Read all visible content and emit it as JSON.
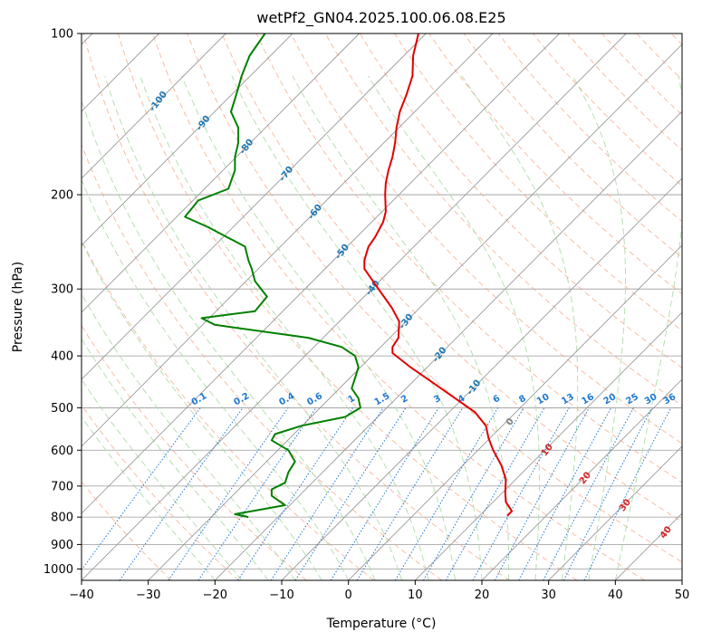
{
  "chart_data": {
    "type": "line",
    "title": "wetPf2_GN04.2025.100.06.08.E25",
    "xlabel": "Temperature (°C)",
    "ylabel": "Pressure (hPa)",
    "xlim": [
      -40,
      50
    ],
    "ylim": [
      1050,
      100
    ],
    "y_scale": "log",
    "x_ticks": [
      -40,
      -30,
      -20,
      -10,
      0,
      10,
      20,
      30,
      40,
      50
    ],
    "y_ticks": [
      1000,
      900,
      800,
      700,
      600,
      500,
      400,
      300,
      200,
      100
    ],
    "grid": true,
    "colors": {
      "temperature": "#e00000",
      "dewpoint": "#008000",
      "isotherm": "#9a9a9a",
      "dry_adiabat": "#f4a582",
      "moist_adiabat": "#a6d8a0",
      "mixing_ratio": "#1f78d1",
      "isotherm_label": "#1f77b4",
      "dry_adiabat_label": "#d62728",
      "zero_label": "#7f7f7f"
    },
    "isotherm_labels": [
      {
        "value": -100,
        "text": "-100"
      },
      {
        "value": -90,
        "text": "-90"
      },
      {
        "value": -80,
        "text": "-80"
      },
      {
        "value": -70,
        "text": "-70"
      },
      {
        "value": -60,
        "text": "-60"
      },
      {
        "value": -50,
        "text": "-50"
      },
      {
        "value": -40,
        "text": "-40"
      },
      {
        "value": -30,
        "text": "-30"
      },
      {
        "value": -20,
        "text": "-20"
      },
      {
        "value": -10,
        "text": "-10"
      },
      {
        "value": 0,
        "text": "0"
      },
      {
        "value": 10,
        "text": "10"
      },
      {
        "value": 20,
        "text": "20"
      },
      {
        "value": 30,
        "text": "30"
      },
      {
        "value": 40,
        "text": "40"
      }
    ],
    "mixing_ratio_labels": [
      "0.1",
      "0.2",
      "0.4",
      "0.6",
      "1",
      "1.5",
      "2",
      "3",
      "4",
      "6",
      "8",
      "10",
      "13",
      "16",
      "20",
      "25",
      "30",
      "36"
    ],
    "series": [
      {
        "name": "",
        "kind": "temperature",
        "points": [
          {
            "p": 100,
            "t": 10.5
          },
          {
            "p": 110,
            "t": 9.7
          },
          {
            "p": 120,
            "t": 9.6
          },
          {
            "p": 130,
            "t": 8.7
          },
          {
            "p": 140,
            "t": 7.7
          },
          {
            "p": 150,
            "t": 7.2
          },
          {
            "p": 160,
            "t": 7.0
          },
          {
            "p": 170,
            "t": 6.6
          },
          {
            "p": 180,
            "t": 6.0
          },
          {
            "p": 190,
            "t": 5.6
          },
          {
            "p": 200,
            "t": 5.5
          },
          {
            "p": 215,
            "t": 5.6
          },
          {
            "p": 225,
            "t": 5.2
          },
          {
            "p": 240,
            "t": 4.0
          },
          {
            "p": 250,
            "t": 3.0
          },
          {
            "p": 265,
            "t": 2.4
          },
          {
            "p": 275,
            "t": 2.4
          },
          {
            "p": 300,
            "t": 4.5
          },
          {
            "p": 325,
            "t": 6.5
          },
          {
            "p": 345,
            "t": 7.6
          },
          {
            "p": 370,
            "t": 7.5
          },
          {
            "p": 385,
            "t": 6.6
          },
          {
            "p": 395,
            "t": 6.6
          },
          {
            "p": 420,
            "t": 9.3
          },
          {
            "p": 450,
            "t": 12.8
          },
          {
            "p": 480,
            "t": 16.0
          },
          {
            "p": 510,
            "t": 19.0
          },
          {
            "p": 540,
            "t": 20.6
          },
          {
            "p": 570,
            "t": 21.0
          },
          {
            "p": 600,
            "t": 21.7
          },
          {
            "p": 640,
            "t": 22.9
          },
          {
            "p": 680,
            "t": 23.6
          },
          {
            "p": 720,
            "t": 23.5
          },
          {
            "p": 750,
            "t": 23.6
          },
          {
            "p": 780,
            "t": 24.5
          },
          {
            "p": 795,
            "t": 23.8
          }
        ]
      },
      {
        "name": "",
        "kind": "dewpoint",
        "points": [
          {
            "p": 100,
            "t": -12.5
          },
          {
            "p": 110,
            "t": -14.8
          },
          {
            "p": 120,
            "t": -16.0
          },
          {
            "p": 130,
            "t": -16.8
          },
          {
            "p": 140,
            "t": -17.6
          },
          {
            "p": 150,
            "t": -16.5
          },
          {
            "p": 160,
            "t": -16.5
          },
          {
            "p": 170,
            "t": -17.0
          },
          {
            "p": 180,
            "t": -17.0
          },
          {
            "p": 195,
            "t": -18.0
          },
          {
            "p": 205,
            "t": -22.5
          },
          {
            "p": 220,
            "t": -24.5
          },
          {
            "p": 230,
            "t": -21.0
          },
          {
            "p": 250,
            "t": -15.5
          },
          {
            "p": 265,
            "t": -15.0
          },
          {
            "p": 275,
            "t": -14.5
          },
          {
            "p": 290,
            "t": -14.0
          },
          {
            "p": 310,
            "t": -12.2
          },
          {
            "p": 330,
            "t": -14.0
          },
          {
            "p": 340,
            "t": -22.0
          },
          {
            "p": 350,
            "t": -20.0
          },
          {
            "p": 370,
            "t": -6.0
          },
          {
            "p": 385,
            "t": -1.0
          },
          {
            "p": 400,
            "t": 1.0
          },
          {
            "p": 420,
            "t": 1.5
          },
          {
            "p": 440,
            "t": 1.0
          },
          {
            "p": 460,
            "t": 0.5
          },
          {
            "p": 480,
            "t": 1.5
          },
          {
            "p": 500,
            "t": 1.8
          },
          {
            "p": 520,
            "t": -0.5
          },
          {
            "p": 540,
            "t": -7.0
          },
          {
            "p": 560,
            "t": -11.0
          },
          {
            "p": 575,
            "t": -11.5
          },
          {
            "p": 600,
            "t": -9.0
          },
          {
            "p": 630,
            "t": -8.0
          },
          {
            "p": 660,
            "t": -9.0
          },
          {
            "p": 690,
            "t": -9.5
          },
          {
            "p": 710,
            "t": -11.5
          },
          {
            "p": 730,
            "t": -11.5
          },
          {
            "p": 760,
            "t": -9.5
          },
          {
            "p": 780,
            "t": -14.5
          },
          {
            "p": 790,
            "t": -17.0
          },
          {
            "p": 800,
            "t": -15.0
          }
        ]
      }
    ]
  }
}
